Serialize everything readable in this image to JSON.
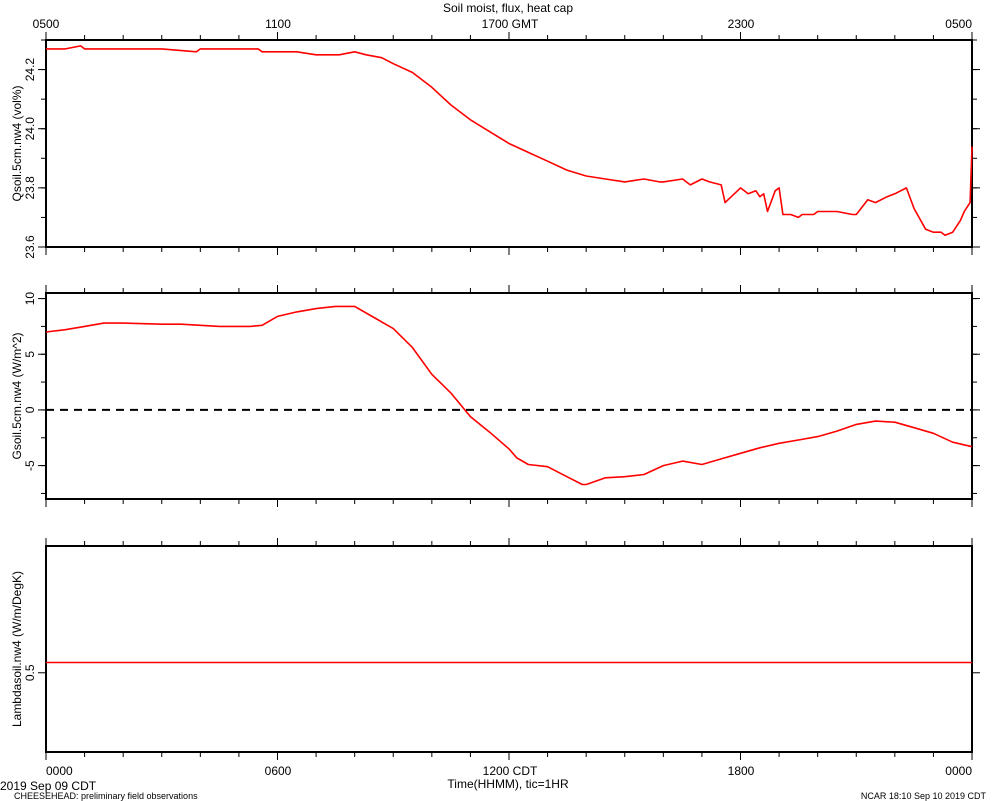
{
  "title": "Soil moist, flux, heat cap",
  "top_axis": {
    "unit": "GMT",
    "ticks": [
      "0500",
      "1100",
      "1700 GMT",
      "2300",
      "0500"
    ]
  },
  "bottom_axis": {
    "label": "Time(HHMM), tic=1HR",
    "ticks": [
      "0000",
      "0600",
      "1200 CDT",
      "1800",
      "0000"
    ]
  },
  "footer": {
    "date": "2019 Sep 09 CDT",
    "left": "CHEESEHEAD: preliminary field observations",
    "right": "NCAR 18:10 Sep 10 2019 CDT"
  },
  "colors": {
    "series": "#ff0000",
    "axes": "#000000",
    "zero_line": "#000000"
  },
  "chart_data": [
    {
      "type": "line",
      "ylabel": "Qsoil.5cm.nw4 (vol%)",
      "ylim": [
        23.6,
        24.3
      ],
      "yticks": [
        23.6,
        23.8,
        24.0,
        24.2
      ],
      "ytick_labels": [
        "23.6",
        "23.8",
        "24.0",
        "24.2"
      ],
      "series": [
        {
          "x": [
            0,
            0.5,
            0.9,
            1,
            2,
            3,
            3.9,
            4,
            5,
            5.5,
            5.6,
            6,
            6.5,
            7,
            7.6,
            8,
            8.3,
            8.7,
            9,
            9.5,
            10,
            10.5,
            11,
            11.5,
            12,
            12.5,
            13,
            13.5,
            14,
            14.5,
            15,
            15.5,
            15.9,
            16,
            16.5,
            16.7,
            17,
            17.2,
            17.5,
            17.6,
            18,
            18.2,
            18.4,
            18.5,
            18.6,
            18.7,
            18.9,
            19,
            19.1,
            19.3,
            19.5,
            19.6,
            19.9,
            20,
            20.5,
            20.9,
            21,
            21.3,
            21.5,
            21.8,
            22,
            22.3,
            22.5,
            22.8,
            23,
            23.2,
            23.3,
            23.5,
            23.7,
            23.8,
            23.9,
            23.95,
            24
          ],
          "y": [
            24.27,
            24.27,
            24.28,
            24.27,
            24.27,
            24.27,
            24.26,
            24.27,
            24.27,
            24.27,
            24.26,
            24.26,
            24.26,
            24.25,
            24.25,
            24.26,
            24.25,
            24.24,
            24.22,
            24.19,
            24.14,
            24.08,
            24.03,
            23.99,
            23.95,
            23.92,
            23.89,
            23.86,
            23.84,
            23.83,
            23.82,
            23.83,
            23.82,
            23.82,
            23.83,
            23.81,
            23.83,
            23.82,
            23.81,
            23.75,
            23.8,
            23.78,
            23.79,
            23.77,
            23.78,
            23.72,
            23.79,
            23.8,
            23.71,
            23.71,
            23.7,
            23.71,
            23.71,
            23.72,
            23.72,
            23.71,
            23.71,
            23.76,
            23.75,
            23.77,
            23.78,
            23.8,
            23.73,
            23.66,
            23.65,
            23.65,
            23.64,
            23.65,
            23.69,
            23.72,
            23.74,
            23.75,
            23.94
          ]
        }
      ]
    },
    {
      "type": "line",
      "ylabel": "Gsoil.5cm.nw4 (W/m^2)",
      "ylim": [
        -8,
        10.5
      ],
      "yticks": [
        -5,
        0,
        5,
        10
      ],
      "ytick_labels": [
        "-5",
        "0",
        "5",
        "10"
      ],
      "reference_line": 0,
      "series": [
        {
          "x": [
            0,
            0.5,
            1,
            1.5,
            2,
            3,
            3.5,
            4,
            4.5,
            5,
            5.3,
            5.6,
            6,
            6.5,
            7,
            7.5,
            8,
            8.5,
            9,
            9.5,
            10,
            10.5,
            11,
            11.5,
            12,
            12.2,
            12.5,
            13,
            13.5,
            13.9,
            14,
            14.5,
            15,
            15.5,
            16,
            16.5,
            17,
            17.5,
            18,
            18.5,
            19,
            19.5,
            20,
            20.5,
            21,
            21.5,
            22,
            22.5,
            23,
            23.5,
            24
          ],
          "y": [
            7,
            7.2,
            7.5,
            7.8,
            7.8,
            7.7,
            7.7,
            7.6,
            7.5,
            7.5,
            7.5,
            7.6,
            8.4,
            8.8,
            9.1,
            9.3,
            9.3,
            8.3,
            7.3,
            5.6,
            3.2,
            1.5,
            -0.6,
            -2,
            -3.5,
            -4.3,
            -4.9,
            -5.1,
            -6,
            -6.7,
            -6.7,
            -6.1,
            -6,
            -5.8,
            -5,
            -4.6,
            -4.9,
            -4.4,
            -3.9,
            -3.4,
            -3,
            -2.7,
            -2.4,
            -1.9,
            -1.3,
            -1,
            -1.1,
            -1.6,
            -2.1,
            -2.9,
            -3.3
          ]
        }
      ]
    },
    {
      "type": "line",
      "ylabel": "Lambdasoil.nw4 (W/m/DegK)",
      "ylim": [
        0.4,
        0.66
      ],
      "yticks": [
        0.5
      ],
      "ytick_labels": [
        "0.5"
      ],
      "series": [
        {
          "x": [
            0,
            24
          ],
          "y": [
            0.513,
            0.513
          ]
        }
      ]
    }
  ]
}
